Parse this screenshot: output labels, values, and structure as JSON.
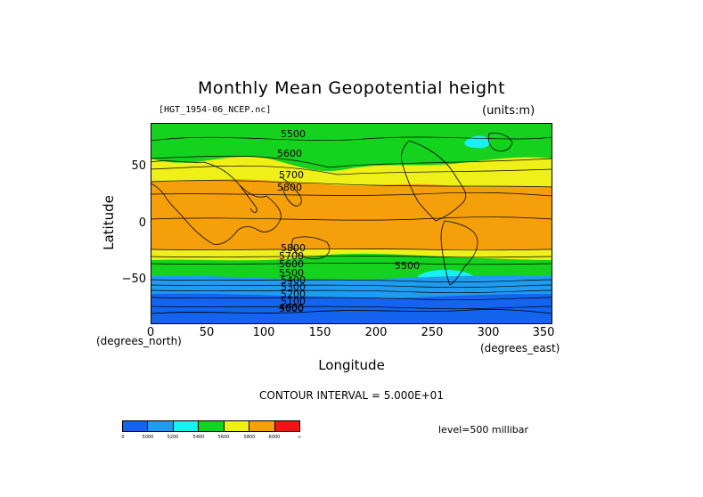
{
  "title": "Monthly Mean Geopotential height",
  "file_label": "[HGT_1954-06_NCEP.nc]",
  "units_label": "(units:m)",
  "y_axis": {
    "label": "Latitude",
    "unit_label": "(degrees_north)",
    "ticks": [
      "50",
      "0",
      "−50"
    ]
  },
  "x_axis": {
    "label": "Longitude",
    "unit_label": "(degrees_east)",
    "ticks": [
      "0",
      "50",
      "100",
      "150",
      "200",
      "250",
      "300",
      "350"
    ]
  },
  "contour_interval": "CONTOUR INTERVAL = 5.000E+01",
  "level": "level=500 millibar",
  "contour_labels": [
    "5500",
    "5600",
    "5700",
    "5800",
    "5800",
    "5700",
    "5600",
    "5500",
    "5400",
    "5300",
    "5200",
    "5100",
    "5000",
    "4900",
    "5500"
  ],
  "colorbar": {
    "colors": [
      "#1464f0",
      "#1e9cf0",
      "#19f0f0",
      "#14d21e",
      "#f0f019",
      "#f5a00a",
      "#f01414"
    ],
    "ticks": [
      "0",
      "5000",
      "5200",
      "5400",
      "5600",
      "5800",
      "6000",
      "∞"
    ]
  },
  "band_colors": {
    "dark_blue": "#1464f0",
    "light_blue": "#1e9cf0",
    "cyan": "#19f0f0",
    "green": "#14d21e",
    "yellow": "#f0f019",
    "orange": "#f5a00a"
  }
}
